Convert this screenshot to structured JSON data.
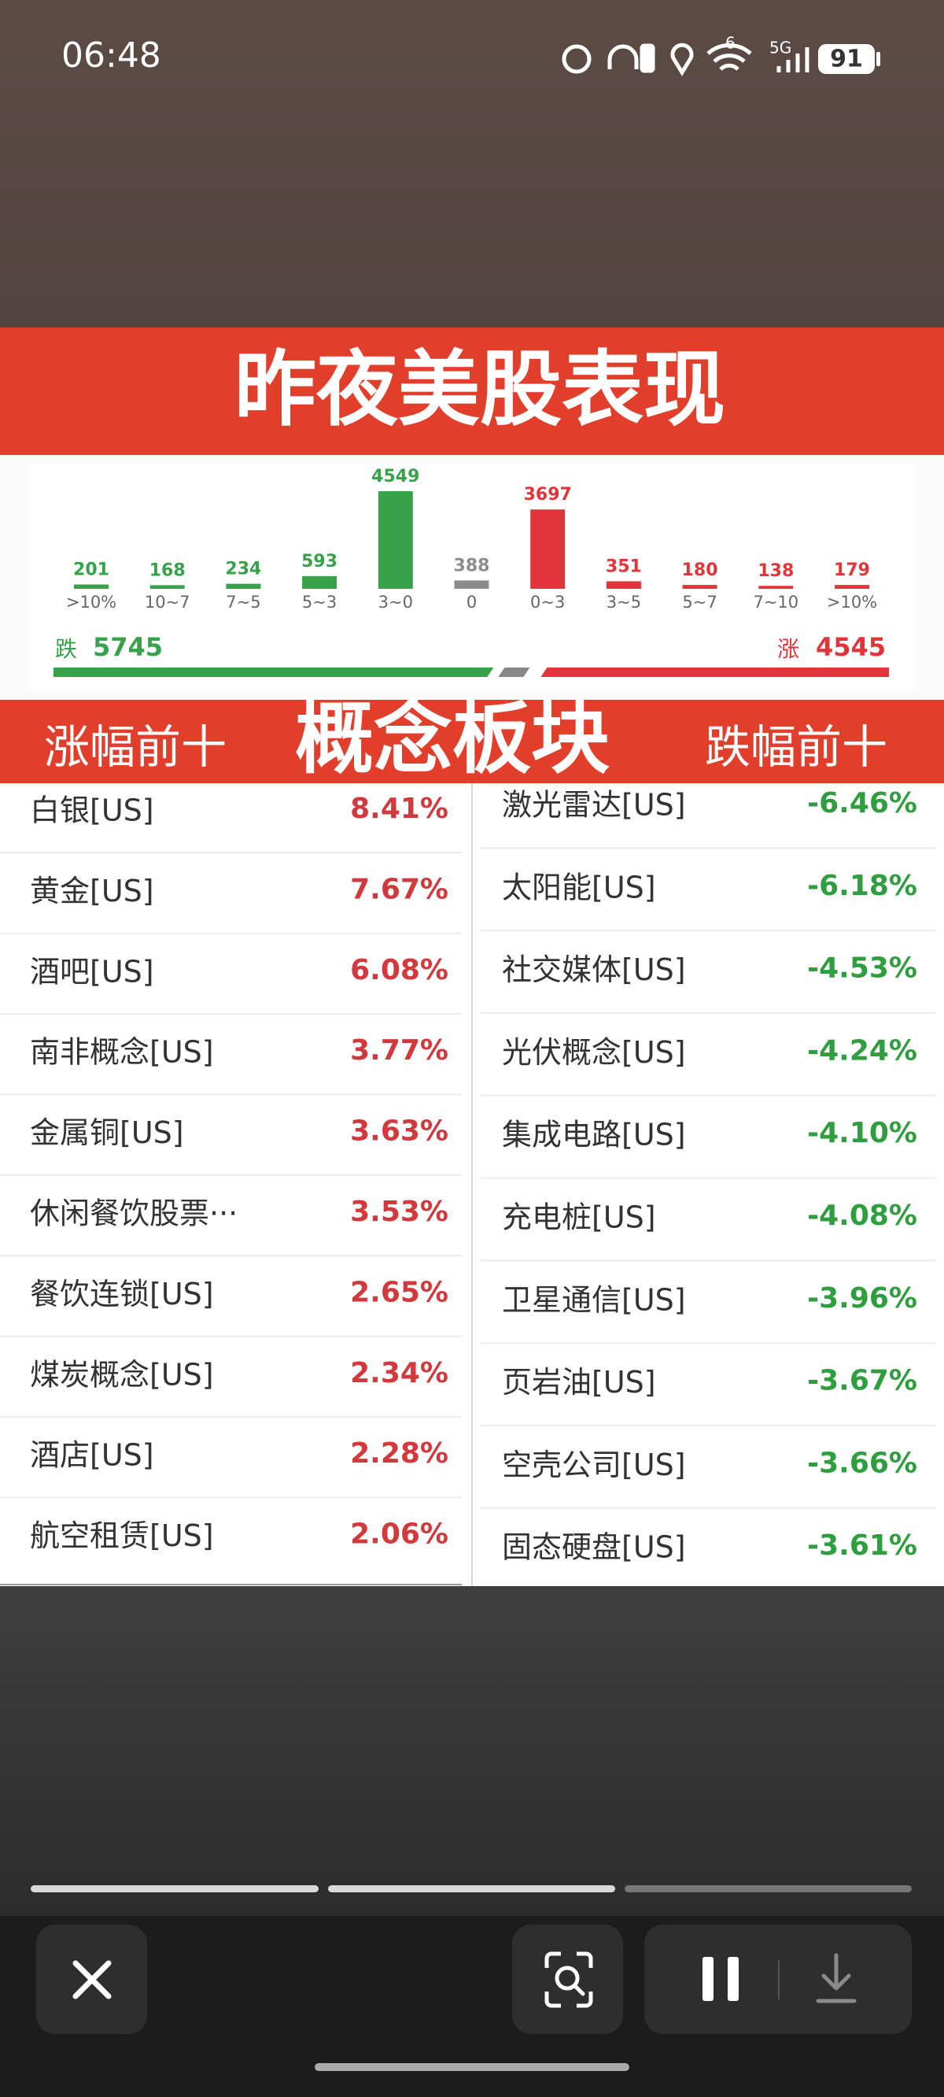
{
  "status_bar": {
    "time": "06:48",
    "wifi": "6",
    "network": "5G",
    "battery": "91"
  },
  "banner": {
    "title": "昨夜美股表现"
  },
  "chart_data": {
    "type": "bar",
    "categories": [
      ">10%",
      "10~7",
      "7~5",
      "5~3",
      "3~0",
      "0",
      "0~3",
      "3~5",
      "5~7",
      "7~10",
      ">10%"
    ],
    "values": [
      201,
      168,
      234,
      593,
      4549,
      388,
      3697,
      351,
      180,
      138,
      179
    ],
    "colors": [
      "#38a24a",
      "#38a24a",
      "#38a24a",
      "#38a24a",
      "#38a24a",
      "#8c8c8c",
      "#e2353b",
      "#e2353b",
      "#e2353b",
      "#e2353b",
      "#e2353b"
    ],
    "down": {
      "label": "跌",
      "value": 5745,
      "color": "#38a24a"
    },
    "up": {
      "label": "涨",
      "value": 4545,
      "color": "#e2353b"
    }
  },
  "section": {
    "left": "涨幅前十",
    "title": "概念板块",
    "right": "跌幅前十"
  },
  "gainers": [
    {
      "name": "白银[US]",
      "change": "8.41%"
    },
    {
      "name": "黄金[US]",
      "change": "7.67%"
    },
    {
      "name": "酒吧[US]",
      "change": "6.08%"
    },
    {
      "name": "南非概念[US]",
      "change": "3.77%"
    },
    {
      "name": "金属铜[US]",
      "change": "3.63%"
    },
    {
      "name": "休闲餐饮股票···",
      "change": "3.53%"
    },
    {
      "name": "餐饮连锁[US]",
      "change": "2.65%"
    },
    {
      "name": "煤炭概念[US]",
      "change": "2.34%"
    },
    {
      "name": "酒店[US]",
      "change": "2.28%"
    },
    {
      "name": "航空租赁[US]",
      "change": "2.06%"
    }
  ],
  "losers": [
    {
      "name": "激光雷达[US]",
      "change": "-6.46%"
    },
    {
      "name": "太阳能[US]",
      "change": "-6.18%"
    },
    {
      "name": "社交媒体[US]",
      "change": "-4.53%"
    },
    {
      "name": "光伏概念[US]",
      "change": "-4.24%"
    },
    {
      "name": "集成电路[US]",
      "change": "-4.10%"
    },
    {
      "name": "充电桩[US]",
      "change": "-4.08%"
    },
    {
      "name": "卫星通信[US]",
      "change": "-3.96%"
    },
    {
      "name": "页岩油[US]",
      "change": "-3.67%"
    },
    {
      "name": "空壳公司[US]",
      "change": "-3.66%"
    },
    {
      "name": "固态硬盘[US]",
      "change": "-3.61%"
    }
  ]
}
